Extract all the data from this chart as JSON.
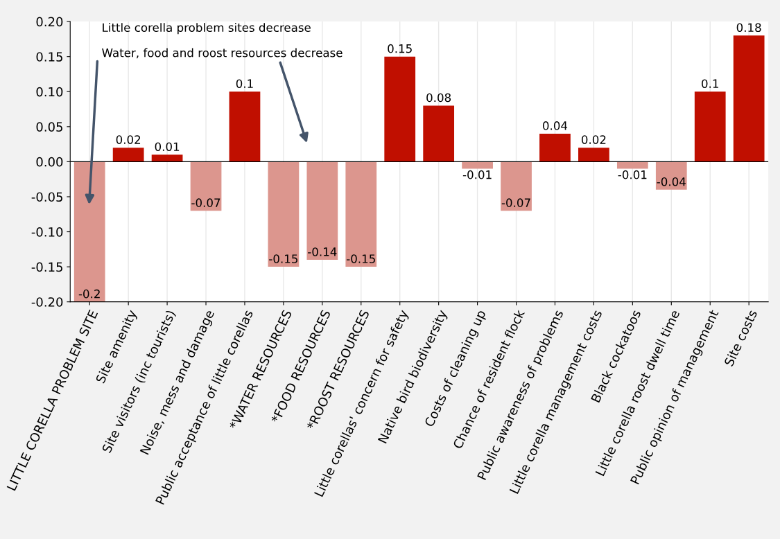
{
  "chart_data": {
    "type": "bar",
    "categories": [
      "LITTLE CORELLA PROBLEM SITE",
      "Site amenity",
      "Site visitors (inc tourists)",
      "Noise, mess and damage",
      "Public acceptance of little corellas",
      "*WATER RESOURCES",
      "*FOOD RESOURCES",
      "*ROOST RESOURCES",
      "Little corellas' concern for safety",
      "Native bird biodiversity",
      "Costs of cleaning up",
      "Chance of resident flock",
      "Public awareness of problems",
      "Little corella management costs",
      "Black cockatoos",
      "Little corella roost dwell time",
      "Public opinion of management",
      "Site costs"
    ],
    "values": [
      -0.2,
      0.02,
      0.01,
      -0.07,
      0.1,
      -0.15,
      -0.14,
      -0.15,
      0.15,
      0.08,
      -0.01,
      -0.07,
      0.04,
      0.02,
      -0.01,
      -0.04,
      0.1,
      0.18
    ],
    "colors": [
      "#dc968e",
      "#c00f00",
      "#c00f00",
      "#dc968e",
      "#c00f00",
      "#dc968e",
      "#dc968e",
      "#dc968e",
      "#c00f00",
      "#c00f00",
      "#dc968e",
      "#dc968e",
      "#c00f00",
      "#c00f00",
      "#dc968e",
      "#dc968e",
      "#c00f00",
      "#c00f00"
    ],
    "ylim": [
      -0.2,
      0.2
    ],
    "yticks": [
      {
        "value": -0.2,
        "label": "-0.20"
      },
      {
        "value": -0.15,
        "label": "-0.15"
      },
      {
        "value": -0.1,
        "label": "-0.10"
      },
      {
        "value": -0.05,
        "label": "-0.05"
      },
      {
        "value": 0,
        "label": "0.00"
      },
      {
        "value": 0.05,
        "label": "0.05"
      },
      {
        "value": 0.1,
        "label": "0.10"
      },
      {
        "value": 0.15,
        "label": "0.15"
      },
      {
        "value": 0.2,
        "label": "0.20"
      }
    ],
    "ref_lines": [
      {
        "axis": "y",
        "value": 0,
        "color": "#000000"
      }
    ],
    "grid": "x",
    "data_labels": true,
    "annotations": [
      "Little corella problem sites decrease",
      "Water, food and roost resources decrease"
    ]
  }
}
